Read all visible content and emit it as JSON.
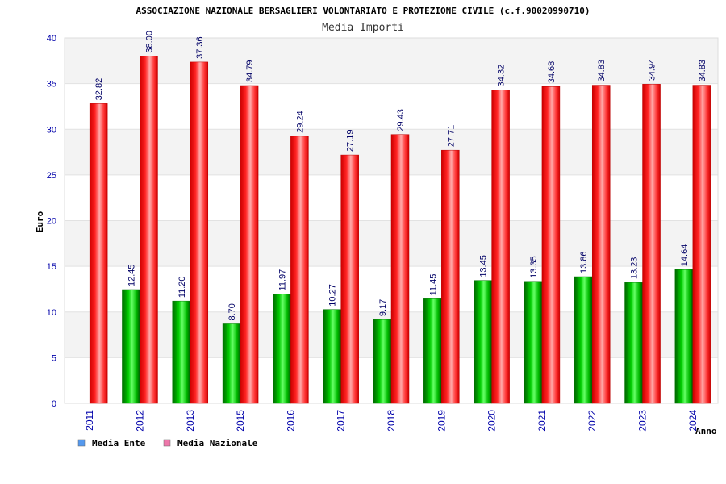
{
  "chart_data": {
    "type": "bar",
    "title": "ASSOCIAZIONE NAZIONALE BERSAGLIERI VOLONTARIATO E PROTEZIONE CIVILE (c.f.90020990710)",
    "subtitle": "Media Importi",
    "ylabel": "Euro",
    "xlabel": "Anno",
    "ylim": [
      0,
      40
    ],
    "yticks": [
      0,
      5,
      10,
      15,
      20,
      25,
      30,
      35,
      40
    ],
    "grid": true,
    "legend_position": "bottom-left",
    "categories": [
      "2011",
      "2012",
      "2013",
      "2015",
      "2016",
      "2017",
      "2018",
      "2019",
      "2020",
      "2021",
      "2022",
      "2023",
      "2024"
    ],
    "series": [
      {
        "name": "Media Ente",
        "color": "#00cc00",
        "legend_color": "#5599ee",
        "values": [
          null,
          12.45,
          11.2,
          8.7,
          11.97,
          10.27,
          9.17,
          11.45,
          13.45,
          13.35,
          13.86,
          13.23,
          14.64
        ],
        "labels": [
          "",
          "12.45",
          "11.20",
          "8.70",
          "11.97",
          "10.27",
          "9.17",
          "11.45",
          "13.45",
          "13.35",
          "13.86",
          "13.23",
          "14.64"
        ]
      },
      {
        "name": "Media Nazionale",
        "color": "#ee0000",
        "legend_color": "#ee77aa",
        "values": [
          32.82,
          38.0,
          37.36,
          34.79,
          29.24,
          27.19,
          29.43,
          27.71,
          34.32,
          34.68,
          34.83,
          34.94,
          34.83
        ],
        "labels": [
          "32.82",
          "38.00",
          "37.36",
          "34.79",
          "29.24",
          "27.19",
          "29.43",
          "27.71",
          "34.32",
          "34.68",
          "34.83",
          "34.94",
          "34.83"
        ]
      }
    ]
  }
}
